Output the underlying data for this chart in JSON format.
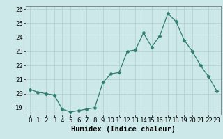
{
  "x": [
    0,
    1,
    2,
    3,
    4,
    5,
    6,
    7,
    8,
    9,
    10,
    11,
    12,
    13,
    14,
    15,
    16,
    17,
    18,
    19,
    20,
    21,
    22,
    23
  ],
  "y": [
    20.3,
    20.1,
    20.0,
    19.9,
    18.9,
    18.7,
    18.8,
    18.9,
    19.0,
    20.8,
    21.4,
    21.5,
    23.0,
    23.1,
    24.3,
    23.3,
    24.1,
    25.7,
    25.1,
    23.8,
    23.0,
    22.0,
    21.2,
    20.2
  ],
  "xlabel": "Humidex (Indice chaleur)",
  "xlim": [
    -0.5,
    23.5
  ],
  "ylim": [
    18.5,
    26.2
  ],
  "yticks": [
    19,
    20,
    21,
    22,
    23,
    24,
    25,
    26
  ],
  "xticks": [
    0,
    1,
    2,
    3,
    4,
    5,
    6,
    7,
    8,
    9,
    10,
    11,
    12,
    13,
    14,
    15,
    16,
    17,
    18,
    19,
    20,
    21,
    22,
    23
  ],
  "line_color": "#2e7d6e",
  "marker": "D",
  "marker_size": 2.5,
  "bg_color": "#cce8e8",
  "grid_color": "#b0cccc",
  "label_fontsize": 7.5,
  "tick_fontsize": 6.5
}
